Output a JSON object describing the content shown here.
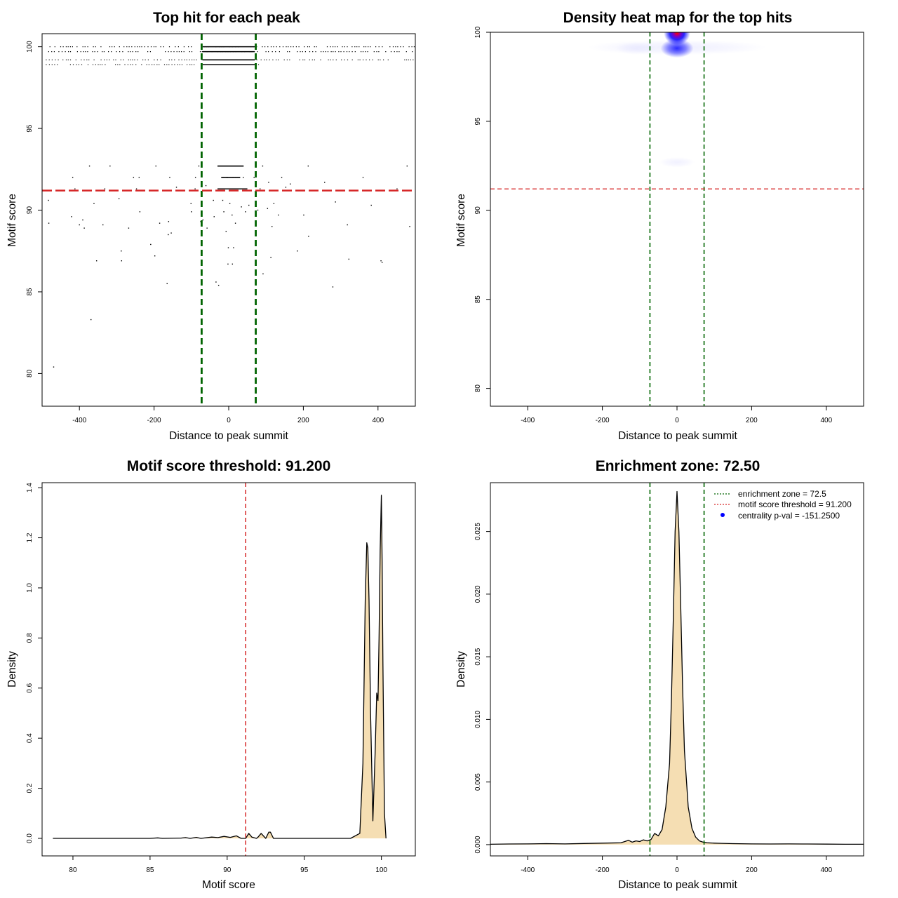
{
  "colors": {
    "points": "#000000",
    "enrichment_line": "#006400",
    "threshold_line": "#d62728",
    "density_fill": "#f5deb3",
    "density_line": "#000000",
    "heat_low": "#0000ff",
    "heat_high": "#ff0000",
    "legend_point": "#0000ff"
  },
  "chart_data": [
    {
      "type": "scatter",
      "title": "Top hit for each peak",
      "xlabel": "Distance to peak summit",
      "ylabel": "Motif score",
      "xlim": [
        -500,
        500
      ],
      "ylim": [
        78,
        100.8
      ],
      "xticks": [
        -400,
        -200,
        0,
        200,
        400
      ],
      "yticks": [
        80,
        85,
        90,
        95,
        100
      ],
      "xtick_labels": [
        "-400",
        "-200",
        "0",
        "200",
        "400"
      ],
      "ytick_labels": [
        "80",
        "85",
        "90",
        "95",
        "100"
      ],
      "vlines": [
        -72.5,
        72.5
      ],
      "hline": 91.2,
      "bands": [
        {
          "y": 100.0,
          "x_range": [
            -480,
            500
          ],
          "dense_range": [
            -70,
            70
          ]
        },
        {
          "y": 99.7,
          "x_range": [
            -490,
            500
          ],
          "dense_range": [
            -70,
            70
          ]
        },
        {
          "y": 99.2,
          "x_range": [
            -490,
            500
          ],
          "dense_range": [
            -70,
            70
          ]
        },
        {
          "y": 98.9,
          "x_range": [
            -490,
            80
          ],
          "dense_range": [
            -70,
            70
          ]
        },
        {
          "y": 92.7,
          "x_range": [
            -30,
            40
          ],
          "dense_range": [
            -30,
            40
          ]
        },
        {
          "y": 92.0,
          "x_range": [
            -20,
            30
          ],
          "dense_range": [
            -20,
            30
          ]
        },
        {
          "y": 91.3,
          "x_range": [
            -30,
            50
          ],
          "dense_range": [
            -30,
            50
          ]
        }
      ],
      "points": [
        [
          -469,
          80.4
        ],
        [
          -369,
          83.3
        ],
        [
          -165,
          85.5
        ],
        [
          -34,
          85.6
        ],
        [
          -27,
          85.4
        ],
        [
          279,
          85.3
        ],
        [
          -354,
          86.9
        ],
        [
          -287,
          86.9
        ],
        [
          -198,
          87.2
        ],
        [
          -2,
          86.7
        ],
        [
          10,
          86.7
        ],
        [
          92,
          86.1
        ],
        [
          113,
          87.1
        ],
        [
          322,
          87.0
        ],
        [
          408,
          86.9
        ],
        [
          411,
          86.8
        ],
        [
          -288,
          87.5
        ],
        [
          -209,
          87.9
        ],
        [
          -1,
          87.7
        ],
        [
          13,
          87.7
        ],
        [
          184,
          87.5
        ],
        [
          214,
          88.4
        ],
        [
          -154,
          88.6
        ],
        [
          -162,
          88.5
        ],
        [
          -7,
          88.7
        ],
        [
          -268,
          88.9
        ],
        [
          -185,
          89.2
        ],
        [
          -391,
          89.4
        ],
        [
          -400,
          89.1
        ],
        [
          -387,
          88.9
        ],
        [
          -337,
          89.1
        ],
        [
          -161,
          89.3
        ],
        [
          -75,
          89.3
        ],
        [
          -58,
          88.9
        ],
        [
          18,
          89.2
        ],
        [
          116,
          89.0
        ],
        [
          318,
          89.1
        ],
        [
          485,
          89.0
        ],
        [
          -482,
          89.2
        ],
        [
          -421,
          89.6
        ],
        [
          -238,
          89.9
        ],
        [
          -100,
          89.9
        ],
        [
          -69,
          89.4
        ],
        [
          -39,
          89.6
        ],
        [
          -13,
          89.9
        ],
        [
          9,
          89.7
        ],
        [
          45,
          89.9
        ],
        [
          78,
          90.0
        ],
        [
          133,
          89.7
        ],
        [
          201,
          89.7
        ],
        [
          -483,
          90.6
        ],
        [
          -361,
          90.4
        ],
        [
          -294,
          90.7
        ],
        [
          -101,
          90.4
        ],
        [
          -41,
          90.6
        ],
        [
          -16,
          90.6
        ],
        [
          3,
          90.4
        ],
        [
          34,
          90.2
        ],
        [
          54,
          90.3
        ],
        [
          104,
          90.1
        ],
        [
          121,
          90.4
        ],
        [
          286,
          90.5
        ],
        [
          382,
          90.3
        ],
        [
          -412,
          91.3
        ],
        [
          -332,
          91.3
        ],
        [
          -247,
          91.3
        ],
        [
          -194,
          91.2
        ],
        [
          -140,
          91.4
        ],
        [
          -90,
          91.3
        ],
        [
          -61,
          91.5
        ],
        [
          84,
          91.3
        ],
        [
          153,
          91.4
        ],
        [
          227,
          91.2
        ],
        [
          295,
          91.2
        ],
        [
          375,
          91.2
        ],
        [
          451,
          91.3
        ],
        [
          -418,
          92.0
        ],
        [
          -255,
          92.0
        ],
        [
          -240,
          92.0
        ],
        [
          -158,
          92.0
        ],
        [
          -89,
          92.0
        ],
        [
          -4,
          92.0
        ],
        [
          39,
          92.0
        ],
        [
          68,
          92.0
        ],
        [
          107,
          91.7
        ],
        [
          142,
          92.0
        ],
        [
          165,
          91.6
        ],
        [
          257,
          91.7
        ],
        [
          360,
          92.0
        ],
        [
          -373,
          92.7
        ],
        [
          -318,
          92.7
        ],
        [
          -195,
          92.7
        ],
        [
          -80,
          92.7
        ],
        [
          91,
          92.7
        ],
        [
          213,
          92.7
        ],
        [
          478,
          92.7
        ]
      ]
    },
    {
      "type": "heatmap",
      "title": "Density heat map for the top hits",
      "xlabel": "Distance to peak summit",
      "ylabel": "Motif score",
      "xlim": [
        -500,
        500
      ],
      "ylim": [
        79,
        100
      ],
      "xticks": [
        -400,
        -200,
        0,
        200,
        400
      ],
      "yticks": [
        80,
        85,
        90,
        95,
        100
      ],
      "xtick_labels": [
        "-400",
        "-200",
        "0",
        "200",
        "400"
      ],
      "ytick_labels": [
        "80",
        "85",
        "90",
        "95",
        "100"
      ],
      "vlines": [
        -72.5,
        72.5
      ],
      "hline": 91.2,
      "hotspots": [
        {
          "x": 0,
          "y": 99.95,
          "sx": 16,
          "sy": 0.28,
          "intensity": 1.0
        },
        {
          "x": 0,
          "y": 99.1,
          "sx": 20,
          "sy": 0.22,
          "intensity": 0.75
        },
        {
          "x": 0,
          "y": 99.15,
          "sx": 110,
          "sy": 0.18,
          "intensity": 0.06
        },
        {
          "x": -110,
          "y": 99.1,
          "sx": 25,
          "sy": 0.15,
          "intensity": 0.04
        },
        {
          "x": 0,
          "y": 92.7,
          "sx": 22,
          "sy": 0.12,
          "intensity": 0.05
        }
      ]
    },
    {
      "type": "area",
      "title": "Motif score threshold: 91.200",
      "xlabel": "Motif score",
      "ylabel": "Density",
      "xlim": [
        78,
        102.2
      ],
      "ylim": [
        -0.07,
        1.42
      ],
      "xticks": [
        80,
        85,
        90,
        95,
        100
      ],
      "yticks": [
        0.0,
        0.2,
        0.4,
        0.6,
        0.8,
        1.0,
        1.2,
        1.4
      ],
      "xtick_labels": [
        "80",
        "85",
        "90",
        "95",
        "100"
      ],
      "ytick_labels": [
        "0.0",
        "0.2",
        "0.4",
        "0.6",
        "0.8",
        "1.0",
        "1.2",
        "1.4"
      ],
      "vline": 91.2,
      "x": [
        78.7,
        85.0,
        85.5,
        85.8,
        87.0,
        87.3,
        87.6,
        88.0,
        88.3,
        89.0,
        89.4,
        89.8,
        90.2,
        90.6,
        90.9,
        91.2,
        91.4,
        91.6,
        91.9,
        92.0,
        92.2,
        92.5,
        92.7,
        92.8,
        93.0,
        93.5,
        95.0,
        98.0,
        98.6,
        98.8,
        98.95,
        99.05,
        99.12,
        99.2,
        99.3,
        99.45,
        99.6,
        99.7,
        99.78,
        99.85,
        99.92,
        100.0,
        100.05,
        100.1,
        100.2,
        100.3
      ],
      "y": [
        0.0,
        0.0,
        0.002,
        0.0,
        0.001,
        0.003,
        0.0,
        0.004,
        0.0,
        0.005,
        0.003,
        0.008,
        0.004,
        0.01,
        0.0,
        0.0,
        0.02,
        0.005,
        0.0,
        0.005,
        0.02,
        0.0,
        0.025,
        0.025,
        0.0,
        0.0,
        0.0,
        0.0,
        0.02,
        0.3,
        0.95,
        1.18,
        1.16,
        0.95,
        0.5,
        0.07,
        0.35,
        0.58,
        0.55,
        0.8,
        1.15,
        1.37,
        1.1,
        0.7,
        0.1,
        0.0
      ]
    },
    {
      "type": "area",
      "title": "Enrichment zone: 72.50",
      "xlabel": "Distance to peak summit",
      "ylabel": "Density",
      "xlim": [
        -500,
        500
      ],
      "ylim": [
        -0.0009,
        0.0289
      ],
      "xticks": [
        -400,
        -200,
        0,
        200,
        400
      ],
      "yticks": [
        0.0,
        0.005,
        0.01,
        0.015,
        0.02,
        0.025
      ],
      "xtick_labels": [
        "-400",
        "-200",
        "0",
        "200",
        "400"
      ],
      "ytick_labels": [
        "0.000",
        "0.005",
        "0.010",
        "0.015",
        "0.020",
        "0.025"
      ],
      "vlines": [
        -72.5,
        72.5
      ],
      "x": [
        -500,
        -450,
        -400,
        -350,
        -300,
        -250,
        -200,
        -150,
        -130,
        -120,
        -110,
        -100,
        -90,
        -80,
        -70,
        -60,
        -50,
        -40,
        -30,
        -20,
        -15,
        -10,
        -5,
        0,
        5,
        10,
        15,
        20,
        30,
        40,
        50,
        60,
        70,
        80,
        100,
        120,
        150,
        200,
        250,
        300,
        350,
        400,
        450,
        500
      ],
      "y": [
        3e-05,
        5e-05,
        6e-05,
        8e-05,
        6e-05,
        9e-05,
        0.00012,
        0.00015,
        0.00035,
        0.0002,
        0.0003,
        0.00025,
        0.00038,
        0.0003,
        0.0004,
        0.0009,
        0.0007,
        0.0012,
        0.003,
        0.0065,
        0.0115,
        0.018,
        0.025,
        0.0282,
        0.025,
        0.019,
        0.0125,
        0.0075,
        0.003,
        0.0013,
        0.0006,
        0.0003,
        0.0002,
        0.00015,
        0.00012,
        0.0001,
        8e-05,
        6e-05,
        5e-05,
        6e-05,
        5e-05,
        4e-05,
        3e-05,
        3e-05
      ],
      "legend": {
        "position": "top-right",
        "entries": [
          {
            "label": "enrichment zone = 72.5",
            "kind": "line",
            "color": "#006400"
          },
          {
            "label": "motif score threshold = 91.200",
            "kind": "line",
            "color": "#d62728"
          },
          {
            "label": "centrality p-val = -151.2500",
            "kind": "point",
            "color": "#0000ff"
          }
        ]
      }
    }
  ]
}
